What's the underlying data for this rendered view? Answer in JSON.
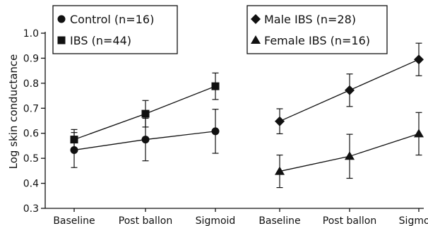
{
  "chart_data": {
    "type": "line",
    "ylabel": "Log skin conductance",
    "ylim": [
      0.3,
      1.0
    ],
    "yticks": [
      "0.3",
      "0.4",
      "0.5",
      "0.6",
      "0.7",
      "0.8",
      "0.9",
      "1.0"
    ],
    "categories": [
      "Baseline",
      "Post ballon",
      "Sigmoid",
      "Baseline",
      "Post ballon",
      "Sigmoid"
    ],
    "grid": false,
    "panels": [
      {
        "legend_position": "top-left",
        "category_indices": [
          0,
          1,
          2
        ],
        "series": [
          {
            "name": "Control (n=16)",
            "marker": "circle",
            "values": [
              0.533,
              0.575,
              0.608
            ],
            "error": [
              0.07,
              0.085,
              0.088
            ]
          },
          {
            "name": "IBS (n=44)",
            "marker": "square",
            "values": [
              0.575,
              0.678,
              0.788
            ],
            "error": [
              0.04,
              0.053,
              0.053
            ]
          }
        ]
      },
      {
        "legend_position": "top-right",
        "category_indices": [
          3,
          4,
          5
        ],
        "series": [
          {
            "name": "Male IBS (n=28)",
            "marker": "diamond",
            "values": [
              0.648,
              0.772,
              0.895
            ],
            "error": [
              0.05,
              0.065,
              0.065
            ]
          },
          {
            "name": "Female IBS (n=16)",
            "marker": "triangle",
            "values": [
              0.448,
              0.508,
              0.598
            ],
            "error": [
              0.065,
              0.088,
              0.085
            ]
          }
        ]
      }
    ]
  },
  "colors": {
    "ink": "#111111",
    "background": "#ffffff"
  }
}
